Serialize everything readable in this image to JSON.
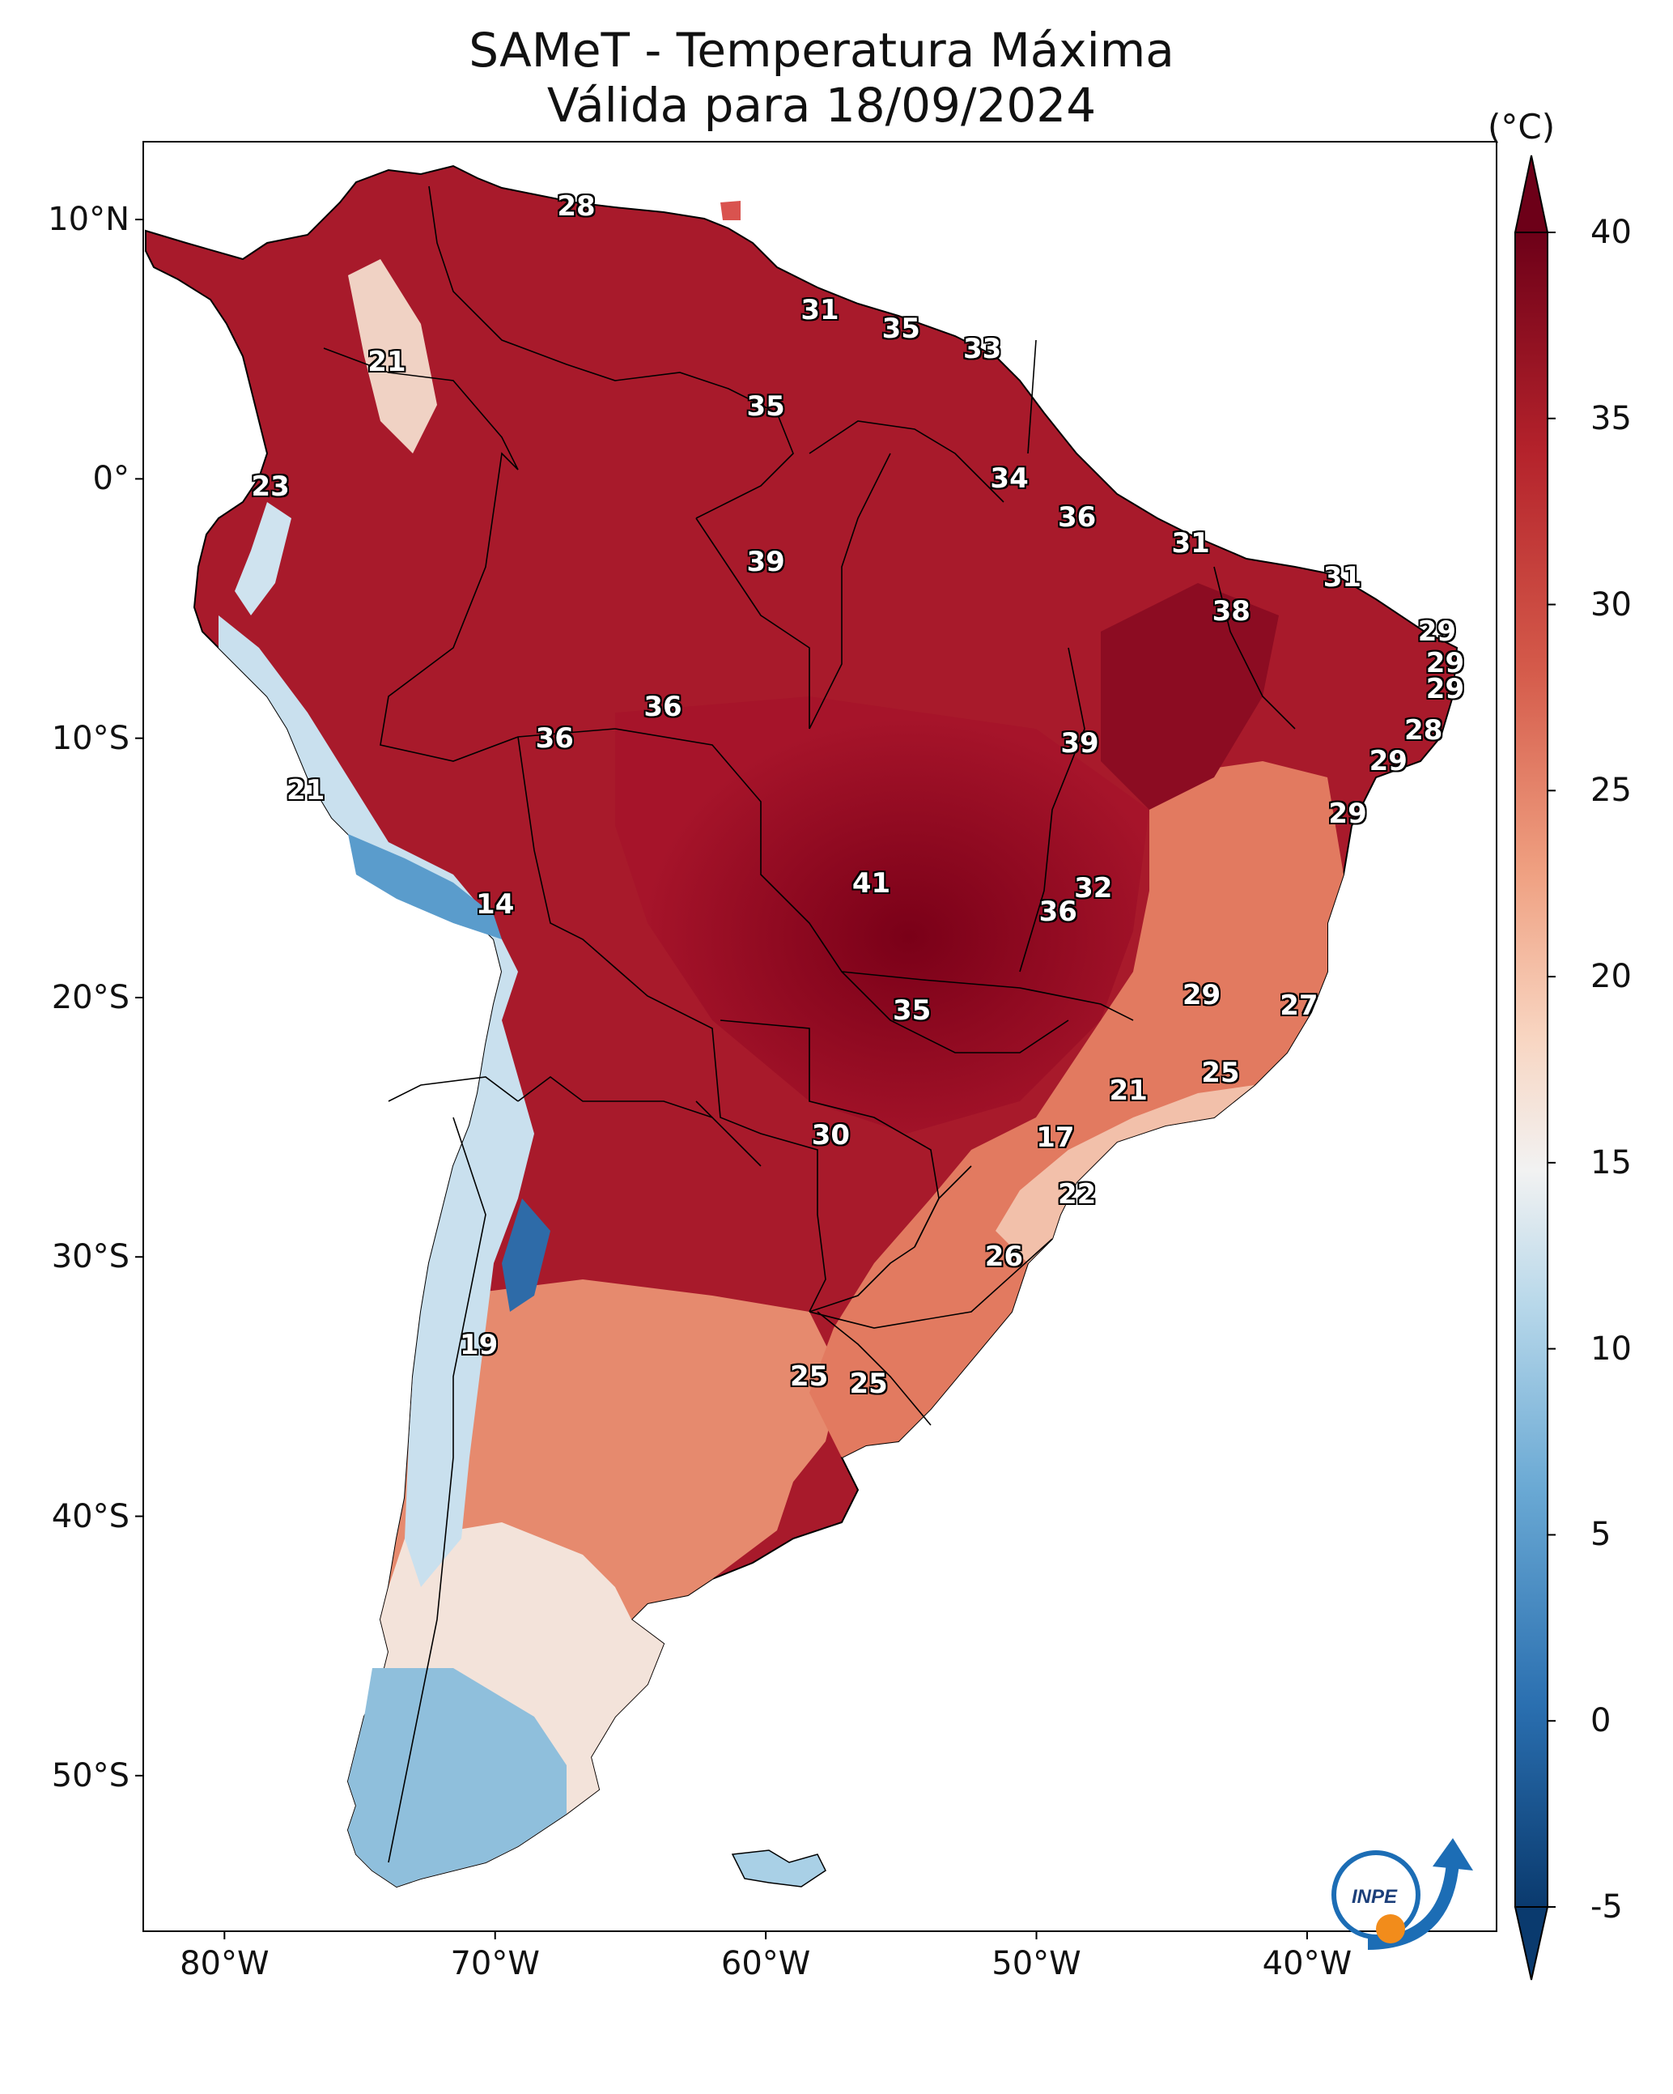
{
  "title": "SAMeT - Temperatura Máxima",
  "subtitle": "Válida para 18/09/2024",
  "colorbar": {
    "unit": "(°C)",
    "ticks": [
      "40",
      "35",
      "30",
      "25",
      "20",
      "15",
      "10",
      "5",
      "0",
      "-5"
    ],
    "min": -5,
    "max": 40
  },
  "axes": {
    "lat_labels": [
      "10°N",
      "0°",
      "10°S",
      "20°S",
      "30°S",
      "40°S",
      "50°S"
    ],
    "lon_labels": [
      "80°W",
      "70°W",
      "60°W",
      "50°W",
      "40°W"
    ]
  },
  "logo_text": "INPE",
  "station_values": [
    {
      "label": "28",
      "lon": -67,
      "lat": 10.5
    },
    {
      "label": "21",
      "lon": -74,
      "lat": 4.5
    },
    {
      "label": "31",
      "lon": -58,
      "lat": 6.5
    },
    {
      "label": "35",
      "lon": -55,
      "lat": 5.8
    },
    {
      "label": "33",
      "lon": -52,
      "lat": 5
    },
    {
      "label": "35",
      "lon": -60,
      "lat": 2.8
    },
    {
      "label": "23",
      "lon": -78.3,
      "lat": -0.3
    },
    {
      "label": "34",
      "lon": -51,
      "lat": 0
    },
    {
      "label": "36",
      "lon": -48.5,
      "lat": -1.5
    },
    {
      "label": "39",
      "lon": -60,
      "lat": -3.2
    },
    {
      "label": "31",
      "lon": -44.3,
      "lat": -2.5
    },
    {
      "label": "31",
      "lon": -38.7,
      "lat": -3.8
    },
    {
      "label": "38",
      "lon": -42.8,
      "lat": -5.1
    },
    {
      "label": "29",
      "lon": -35.2,
      "lat": -5.9
    },
    {
      "label": "29",
      "lon": -34.9,
      "lat": -7.1
    },
    {
      "label": "29",
      "lon": -34.9,
      "lat": -8.1
    },
    {
      "label": "36",
      "lon": -63.8,
      "lat": -8.8
    },
    {
      "label": "36",
      "lon": -67.8,
      "lat": -10
    },
    {
      "label": "39",
      "lon": -48.4,
      "lat": -10.2
    },
    {
      "label": "28",
      "lon": -35.7,
      "lat": -9.7
    },
    {
      "label": "29",
      "lon": -37,
      "lat": -10.9
    },
    {
      "label": "21",
      "lon": -77,
      "lat": -12
    },
    {
      "label": "29",
      "lon": -38.5,
      "lat": -12.9
    },
    {
      "label": "14",
      "lon": -70,
      "lat": -16.4
    },
    {
      "label": "41",
      "lon": -56.1,
      "lat": -15.6
    },
    {
      "label": "32",
      "lon": -47.9,
      "lat": -15.8
    },
    {
      "label": "36",
      "lon": -49.2,
      "lat": -16.7
    },
    {
      "label": "29",
      "lon": -43.9,
      "lat": -19.9
    },
    {
      "label": "27",
      "lon": -40.3,
      "lat": -20.3
    },
    {
      "label": "35",
      "lon": -54.6,
      "lat": -20.5
    },
    {
      "label": "25",
      "lon": -43.2,
      "lat": -22.9
    },
    {
      "label": "21",
      "lon": -46.6,
      "lat": -23.6
    },
    {
      "label": "30",
      "lon": -57.6,
      "lat": -25.3
    },
    {
      "label": "17",
      "lon": -49.3,
      "lat": -25.4
    },
    {
      "label": "22",
      "lon": -48.5,
      "lat": -27.6
    },
    {
      "label": "26",
      "lon": -51.2,
      "lat": -30
    },
    {
      "label": "19",
      "lon": -70.6,
      "lat": -33.4
    },
    {
      "label": "25",
      "lon": -58.4,
      "lat": -34.6
    },
    {
      "label": "25",
      "lon": -56.2,
      "lat": -34.9
    }
  ]
}
